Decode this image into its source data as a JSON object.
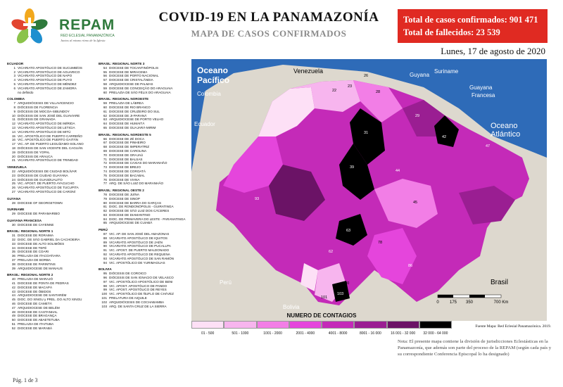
{
  "header": {
    "brand": "REPAM",
    "brand_sub": "RED ECLESIAL PANAMAZÓNICA",
    "brand_tag": "Juntos al mismo ritmo de la Iglesia",
    "title": "COVID-19 EN LA PANAMAZONÍA",
    "subtitle": "MAPA DE CASOS CONFIRMADOS",
    "total_cases": "Total de casos confirmados: 901 471",
    "total_deaths": "Total de fallecidos: 23 539",
    "date": "Lunes, 17 de agosto de 2020"
  },
  "legend_groups": [
    {
      "col": 1,
      "header": "ECUADOR",
      "items": [
        [
          "1",
          "VICARIATO APOSTÓLICO DE SUCUMBÍOS"
        ],
        [
          "2",
          "VICARIATO APOSTÓLICO DE AGUARICO"
        ],
        [
          "3",
          "VICARIATO APOSTÓLICO DE NAPO"
        ],
        [
          "4",
          "VICARIATO APOSTÓLICO DE PUYO"
        ],
        [
          "5",
          "VICARIATO APOSTÓLICO DE MÉNDEZ"
        ],
        [
          "6",
          "VICARIATO APOSTÓLICO DE ZAMORA"
        ],
        [
          "",
          "no definido"
        ]
      ]
    },
    {
      "col": 1,
      "header": "COLOMBIA",
      "items": [
        [
          "7",
          "ARQUIDIÓCESIS DE VILLAVICENCIO"
        ],
        [
          "8",
          "DIÓCESIS DE FLORENCIA"
        ],
        [
          "9",
          "DIÓCESIS DE MOCOA-SIBUNDOY"
        ],
        [
          "10",
          "DIÓCESIS DE SAN JOSÉ DEL GUAVIARE"
        ],
        [
          "11",
          "DIÓCESIS DE GRANADA"
        ],
        [
          "12",
          "VICARIATO APOSTÓLICO DE IMÍRIDA"
        ],
        [
          "13",
          "VICARIATO APOSTÓLICO DE LETICIA"
        ],
        [
          "14",
          "VICARIATO APOSTÓLICO DE MITÚ"
        ],
        [
          "15",
          "VIC. APOSTÓLICO DE PUERTO CARREÑO"
        ],
        [
          "16",
          "VIC. APOSTÓLICO DE PUERTO GAITÁN"
        ],
        [
          "17",
          "VIC. AP. DE PUERTO LEGUÍZAMO-SOLANO"
        ],
        [
          "18",
          "DIÓCESIS DE SAN VICENTE DEL CAGUÁN"
        ],
        [
          "19",
          "DIÓCESIS DE YOPAL"
        ],
        [
          "20",
          "DIÓCESIS DE ARAUCA"
        ],
        [
          "21",
          "VICARIATO APOSTÓLICO DE TRINIDAD"
        ]
      ]
    },
    {
      "col": 1,
      "header": "VENEZUELA",
      "items": [
        [
          "22",
          "ARQUIDIÓCESIS DE CIUDAD BOLÍVAR"
        ],
        [
          "23",
          "DIÓCESIS DE CIUDAD GUAYANA"
        ],
        [
          "24",
          "DIÓCESIS DE GUASDUALITO"
        ],
        [
          "25",
          "VIC. APOST. DE PUERTO AYACUCHO"
        ],
        [
          "26",
          "VICARIATO APOSTÓLICO DE TUCUPITA"
        ],
        [
          "27",
          "VICARIATO APOSTÓLICO DE CARONÍ"
        ]
      ]
    },
    {
      "col": 1,
      "header": "GUYANA",
      "items": [
        [
          "28",
          "DIOCESE OF GEORGETOWN"
        ]
      ]
    },
    {
      "col": 1,
      "header": "SURINAME",
      "items": [
        [
          "29",
          "DIOCESE DE PARAMARIBO"
        ]
      ]
    },
    {
      "col": 1,
      "header": "GUAYANA FRANCESA",
      "items": [
        [
          "30",
          "DIOCESE DE CAYENNE"
        ]
      ]
    },
    {
      "col": 1,
      "header": "BRASIL: REGIONAL NORTE 1",
      "items": [
        [
          "31",
          "DIOCESE DE RORAIMA"
        ],
        [
          "32",
          "DIOC. DE SÃO GABRIEL DA CACHOEIRA"
        ],
        [
          "33",
          "DIOCESE DE ALTO SOLIMÕES"
        ],
        [
          "34",
          "DIOCESE DE TEFÉ"
        ],
        [
          "35",
          "DIOCESE DE COARI"
        ],
        [
          "36",
          "PRELAZIA DE ITACOATIARA"
        ],
        [
          "37",
          "PRELAZIA DE BORBA"
        ],
        [
          "38",
          "DIOCESE DE PARINTINS"
        ],
        [
          "39",
          "ARQUIDIOCESE DE MANAUS"
        ]
      ]
    },
    {
      "col": 1,
      "header": "BRASIL: REGIONAL NORTE 2",
      "items": [
        [
          "40",
          "PRELAZIA DE MARAJÓ"
        ],
        [
          "41",
          "DIOCESE DE PONTA DE PEDRAS"
        ],
        [
          "42",
          "DIOCESE DE MACAPÁ"
        ],
        [
          "43",
          "DIOCESE DE ÓBIDOS"
        ],
        [
          "44",
          "ARQUIDIOCESE DE SANTARÉM"
        ],
        [
          "45",
          "DIOC. DO XINGU y PREL. DO ALTO XINGU"
        ],
        [
          "46",
          "DIOCESE DE CAMETÁ"
        ],
        [
          "47",
          "ARQUIDIOCESE DE BELÉM"
        ],
        [
          "48",
          "DIOCESE DE CASTANHAL"
        ],
        [
          "49",
          "DIOCESE DE BRAGANÇA"
        ],
        [
          "50",
          "DIOCESE DE ABAETETUBA"
        ],
        [
          "51",
          "PRELAZIA DE ITAITUBA"
        ],
        [
          "52",
          "DIOCESE DE MARABÁ"
        ]
      ]
    },
    {
      "col": 2,
      "header": "BRASIL: REGIONAL NORTE 3",
      "items": [
        [
          "54",
          "DIOCESE DE TOCANTINÓPOLIS"
        ],
        [
          "55",
          "DIOCESE DE MIRACEMA"
        ],
        [
          "56",
          "DIOCESE DE PORTO NACIONAL"
        ],
        [
          "57",
          "DIOCESE DE CRISTALÂNDIA"
        ],
        [
          "58",
          "ARQUIDIOCESE DE PALMAS"
        ],
        [
          "59",
          "DIOCESE DE CONCEIÇÃO DO ARAGUAIA"
        ],
        [
          "60",
          "PRELAZIA DE SÃO FÉLIX DO ARAGUAIA"
        ]
      ]
    },
    {
      "col": 2,
      "header": "BRASIL: REGIONAL NOROESTE",
      "items": [
        [
          "59",
          "PRELAZIA DE LÁBREA"
        ],
        [
          "60",
          "DIOCESE DE RIO BRANCO"
        ],
        [
          "61",
          "DIOCESE DE CRUZEIRO DO SUL"
        ],
        [
          "62",
          "DIOCESE DE JI-PARANÁ"
        ],
        [
          "63",
          "ARQUIDIOCESE DE PORTO VELHO"
        ],
        [
          "64",
          "DIOCESE DE HUMAITÁ"
        ],
        [
          "65",
          "DIOCESE DE GUAJARÁ-MIRIM"
        ]
      ]
    },
    {
      "col": 2,
      "header": "BRASIL: REGIONAL NORDESTE 5",
      "items": [
        [
          "66",
          "DIOCESE DE ZÉ DOCA"
        ],
        [
          "67",
          "DIOCESE DE PINHEIRO"
        ],
        [
          "68",
          "DIOCESE DE IMPERATRIZ"
        ],
        [
          "69",
          "DIOCESE DE CAROLINA"
        ],
        [
          "70",
          "DIOCESE DE GRAJAÚ"
        ],
        [
          "71",
          "DIOCESE DE BALSAS"
        ],
        [
          "72",
          "DIOCESE DE CAXIAS DO MARANHÃO"
        ],
        [
          "73",
          "DIOCESE DE BREJO"
        ],
        [
          "74",
          "DIOCESE DE COROATÁ"
        ],
        [
          "75",
          "DIOCESE DE BACABAL"
        ],
        [
          "76",
          "DIOCESE DE VIANA"
        ],
        [
          "77",
          "ARQ. DE SÃO LUIZ DO MARANHÃO"
        ]
      ]
    },
    {
      "col": 2,
      "header": "BRASIL: REGIONAL OESTE 2",
      "items": [
        [
          "78",
          "DIOCESE DE JUÍNA"
        ],
        [
          "79",
          "DIOCESE DE SINOP"
        ],
        [
          "80",
          "DIOCESE DE BARRA DO GARÇAS"
        ],
        [
          "81",
          "DIOC. DE RONDONÓPOLIS - GUIRATINGA"
        ],
        [
          "82",
          "DIOCESE DE SÃO LUIZ DOS CÁCERES"
        ],
        [
          "83",
          "DIOCESE DE DIAMANTINO"
        ],
        [
          "84",
          "DIOC. DE PRIMAVERA DO LESTE - PARANATINGA"
        ],
        [
          "85",
          "ARQUIDIOCESE DE CUIABÁ"
        ]
      ]
    },
    {
      "col": 2,
      "header": "PERÚ",
      "items": [
        [
          "87",
          "VIC. AP. DE SAN JOSÉ DEL AMAZONAS"
        ],
        [
          "88",
          "VICARIATO APOSTÓLICO DE IQUITOS"
        ],
        [
          "89",
          "VICARIATO APOSTÓLICO DE JAÉN"
        ],
        [
          "90",
          "VICARIATO APOSTÓLICO DE PUCALLPA"
        ],
        [
          "91",
          "VIC. APOST. DE PUERTO MALDONADO"
        ],
        [
          "92",
          "VICARIATO APOSTÓLICO DE REQUENA"
        ],
        [
          "93",
          "VICARIATO APOSTÓLICO DE SAN RAMÓN"
        ],
        [
          "94",
          "VIC. APOSTÓLICO DE YURIMAGUAS"
        ]
      ]
    },
    {
      "col": 2,
      "header": "BOLIVIA",
      "items": [
        [
          "95",
          "DIÓCESIS DE COROICO"
        ],
        [
          "96",
          "DIÓCESIS DE SAN IGNACIO DE VELASCO"
        ],
        [
          "97",
          "VIC. APOSTÓLICO APOSTÓLICO DE BENI"
        ],
        [
          "98",
          "VIC. APOST. APOSTÓLICO DE PANDO"
        ],
        [
          "99",
          "VIC. APOST. APOSTÓLICO DE REYES"
        ],
        [
          "100",
          "VIC. APOSTÓLICO DE ÑUFLO DE CHÁVEZ"
        ],
        [
          "101",
          "PRELATURA DE AIQUILE"
        ],
        [
          "102",
          "ARQUIDIÓCESIS DE COCHABAMBA"
        ],
        [
          "103",
          "ARQ. DE SANTA CRUZ DE LA SIERRA"
        ]
      ]
    }
  ],
  "map": {
    "labels": [
      "Oceano Pacífico",
      "Colombia",
      "Ecuador",
      "Perú",
      "Bolivia",
      "Venezuela",
      "Guyana",
      "Suriname",
      "Guayana Francesa",
      "Oceano Atlántico",
      "Brasil"
    ],
    "scale_labels": [
      "0",
      "175",
      "350",
      "700 Km"
    ],
    "region_numbers": [
      "31",
      "42",
      "39",
      "63",
      "78",
      "47",
      "100",
      "103",
      "101",
      "22",
      "23",
      "26",
      "28",
      "29",
      "44",
      "45",
      "62",
      "86",
      "93"
    ],
    "colors": {
      "bin1": "#fde0f6",
      "bin2": "#f7b5ee",
      "bin3": "#f27ee6",
      "bin4": "#e545dc",
      "bin5": "#c42ab8",
      "bin6": "#9a1e92",
      "bin7": "#6b1366",
      "bin8": "#3b0b38",
      "bin9": "#000000",
      "ocean": "#2e6bb8"
    }
  },
  "contagios": {
    "title": "NUMERO DE CONTAGIOS",
    "bins": [
      {
        "label": "01 - 500",
        "color": "#fde0f6"
      },
      {
        "label": "501 - 1000",
        "color": "#f7b5ee"
      },
      {
        "label": "1001 - 2000",
        "color": "#f27ee6"
      },
      {
        "label": "2001 - 4000",
        "color": "#e545dc"
      },
      {
        "label": "4001 - 8000",
        "color": "#c42ab8"
      },
      {
        "label": "8001 - 16 000",
        "color": "#9a1e92"
      },
      {
        "label": "16 001 - 32 000",
        "color": "#6b1366"
      },
      {
        "label": "32 000 - 64 000",
        "color": "#000000"
      }
    ]
  },
  "fuente": "Fuente Mapa: Red Eclesial Panamazónica. 2019.",
  "nota": "Nota: El presente mapa contiene la división de jurisdicciones Eclesiásticas en la Panamazonía, que además son parte del proceso de la REPAM (según cada país y su correspondiente Conferencia Episcopal lo ha designado)",
  "page": "Pág. 1 de 3"
}
